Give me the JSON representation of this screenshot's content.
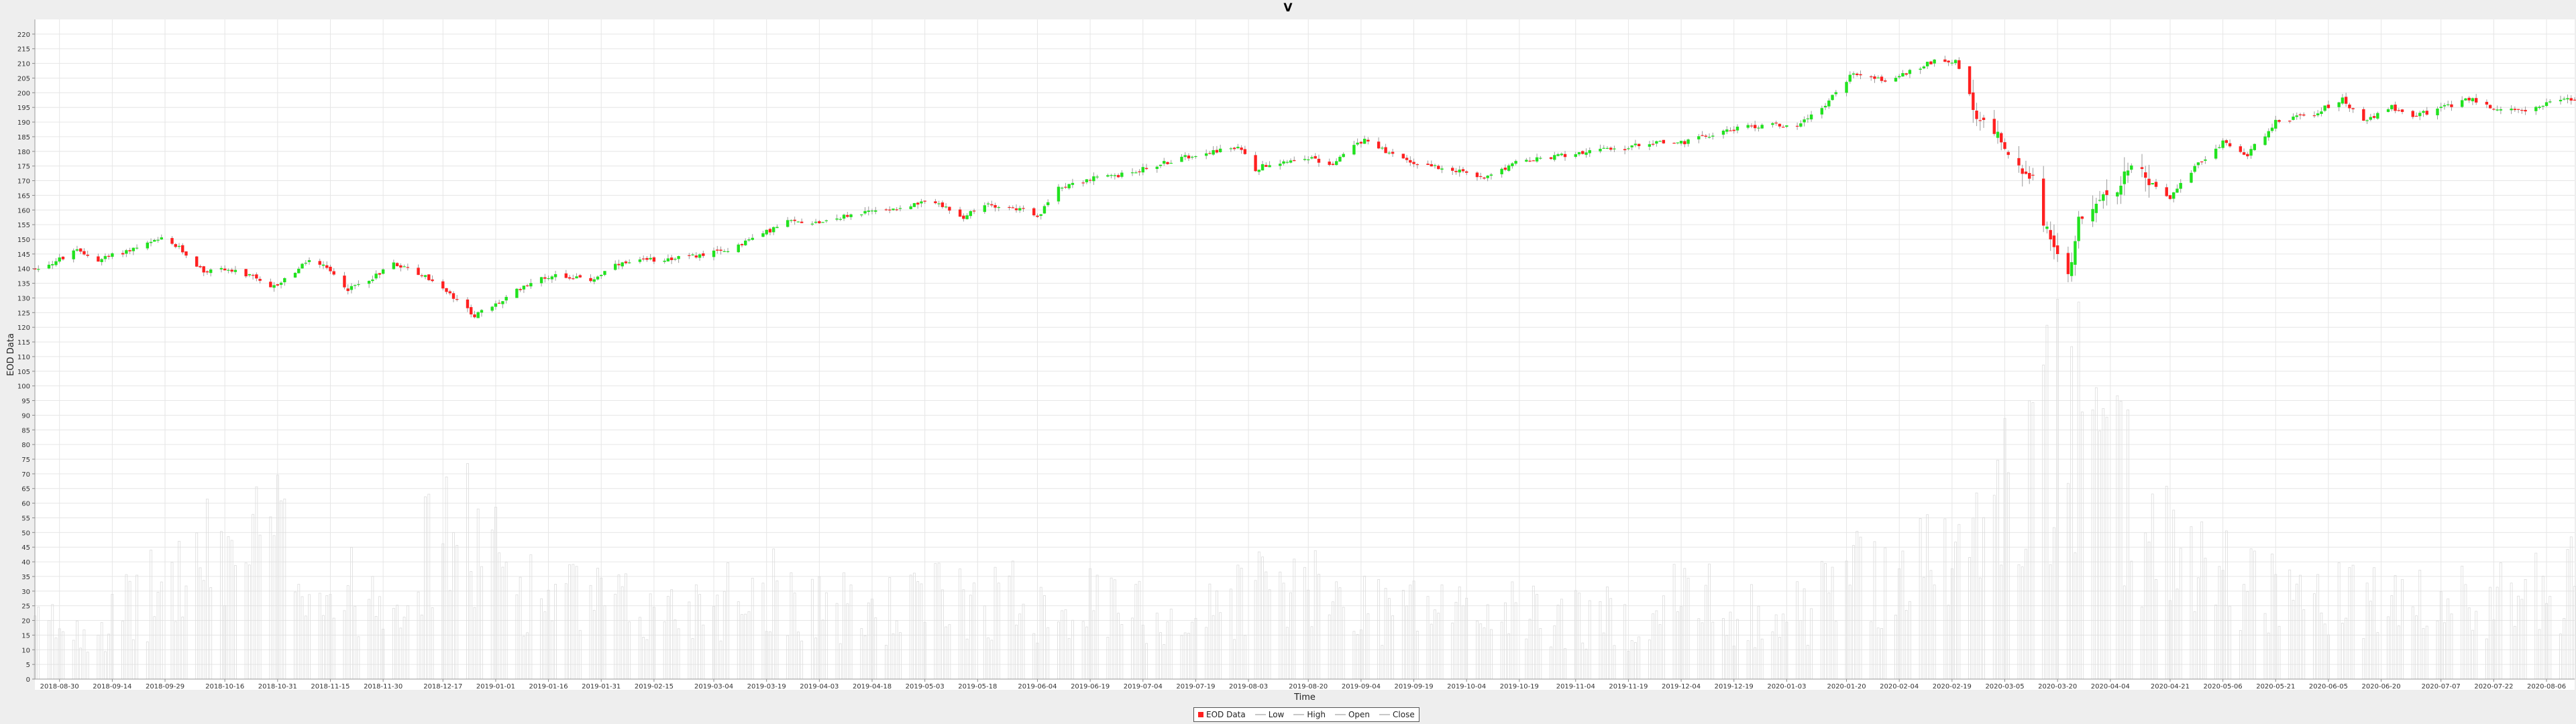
{
  "chart_data": {
    "type": "candlestick",
    "title": "V",
    "xlabel": "Time",
    "ylabel": "EOD Data",
    "ylim": [
      0,
      225
    ],
    "yticks": [
      0,
      5,
      10,
      15,
      20,
      25,
      30,
      35,
      40,
      45,
      50,
      55,
      60,
      65,
      70,
      75,
      80,
      85,
      90,
      95,
      100,
      105,
      110,
      115,
      120,
      125,
      130,
      135,
      140,
      145,
      150,
      155,
      160,
      165,
      170,
      175,
      180,
      185,
      190,
      195,
      200,
      205,
      210,
      215,
      220
    ],
    "xlim": [
      "2018-08-23",
      "2020-08-14"
    ],
    "xticks": [
      "2018-08-30",
      "2018-09-14",
      "2018-09-29",
      "2018-10-16",
      "2018-10-31",
      "2018-11-15",
      "2018-11-30",
      "2018-12-17",
      "2019-01-01",
      "2019-01-16",
      "2019-01-31",
      "2019-02-15",
      "2019-03-04",
      "2019-03-19",
      "2019-04-03",
      "2019-04-18",
      "2019-05-03",
      "2019-05-18",
      "2019-06-04",
      "2019-06-19",
      "2019-07-04",
      "2019-07-19",
      "2019-08-03",
      "2019-08-20",
      "2019-09-04",
      "2019-09-19",
      "2019-10-04",
      "2019-10-19",
      "2019-11-04",
      "2019-11-19",
      "2019-12-04",
      "2019-12-19",
      "2020-01-03",
      "2020-01-20",
      "2020-02-04",
      "2020-02-19",
      "2020-03-05",
      "2020-03-20",
      "2020-04-04",
      "2020-04-21",
      "2020-05-06",
      "2020-05-21",
      "2020-06-05",
      "2020-06-20",
      "2020-07-07",
      "2020-07-22",
      "2020-08-06"
    ],
    "grid": true,
    "legend_position": "bottom-center",
    "colors": {
      "up": "#21e21f",
      "down": "#ff2020",
      "wick": "#9a9a9a",
      "volume": "#dcdcdc",
      "grid": "#e6e6e6",
      "plot_bg": "#ffffff"
    },
    "legend": [
      {
        "label": "EOD Data",
        "swatch": "box",
        "color": "#ff2020"
      },
      {
        "label": "Low",
        "swatch": "line",
        "color": "#c8c8c8"
      },
      {
        "label": "High",
        "swatch": "line",
        "color": "#c8c8c8"
      },
      {
        "label": "Open",
        "swatch": "line",
        "color": "#c8c8c8"
      },
      {
        "label": "Close",
        "swatch": "line",
        "color": "#c8c8c8"
      }
    ],
    "price_anchors": [
      [
        "2018-08-23",
        140
      ],
      [
        "2018-08-28",
        142
      ],
      [
        "2018-09-04",
        146
      ],
      [
        "2018-09-10",
        143
      ],
      [
        "2018-09-18",
        146
      ],
      [
        "2018-09-28",
        150
      ],
      [
        "2018-10-03",
        147
      ],
      [
        "2018-10-10",
        139
      ],
      [
        "2018-10-16",
        140
      ],
      [
        "2018-10-24",
        137
      ],
      [
        "2018-10-29",
        133
      ],
      [
        "2018-11-05",
        139
      ],
      [
        "2018-11-09",
        143
      ],
      [
        "2018-11-14",
        140
      ],
      [
        "2018-11-20",
        133
      ],
      [
        "2018-11-27",
        137
      ],
      [
        "2018-12-03",
        142
      ],
      [
        "2018-12-07",
        140
      ],
      [
        "2018-12-14",
        136
      ],
      [
        "2018-12-21",
        129
      ],
      [
        "2018-12-26",
        124
      ],
      [
        "2019-01-03",
        129
      ],
      [
        "2019-01-10",
        135
      ],
      [
        "2019-01-18",
        138
      ],
      [
        "2019-01-28",
        136
      ],
      [
        "2019-02-04",
        141
      ],
      [
        "2019-02-14",
        143
      ],
      [
        "2019-02-25",
        144
      ],
      [
        "2019-03-07",
        146
      ],
      [
        "2019-03-18",
        152
      ],
      [
        "2019-03-25",
        156
      ],
      [
        "2019-04-03",
        156
      ],
      [
        "2019-04-15",
        159
      ],
      [
        "2019-04-26",
        161
      ],
      [
        "2019-05-06",
        163
      ],
      [
        "2019-05-13",
        157
      ],
      [
        "2019-05-21",
        162
      ],
      [
        "2019-05-31",
        160
      ],
      [
        "2019-06-04",
        157
      ],
      [
        "2019-06-10",
        168
      ],
      [
        "2019-06-21",
        171
      ],
      [
        "2019-06-28",
        172
      ],
      [
        "2019-07-10",
        176
      ],
      [
        "2019-07-22",
        180
      ],
      [
        "2019-08-01",
        181
      ],
      [
        "2019-08-05",
        174
      ],
      [
        "2019-08-09",
        176
      ],
      [
        "2019-08-20",
        178
      ],
      [
        "2019-08-26",
        175
      ],
      [
        "2019-09-03",
        183
      ],
      [
        "2019-09-06",
        184
      ],
      [
        "2019-09-12",
        179
      ],
      [
        "2019-09-19",
        176
      ],
      [
        "2019-09-30",
        174
      ],
      [
        "2019-10-08",
        171
      ],
      [
        "2019-10-18",
        176
      ],
      [
        "2019-10-28",
        178
      ],
      [
        "2019-11-07",
        180
      ],
      [
        "2019-11-18",
        181
      ],
      [
        "2019-11-25",
        183
      ],
      [
        "2019-12-05",
        183
      ],
      [
        "2019-12-16",
        187
      ],
      [
        "2019-12-27",
        189
      ],
      [
        "2020-01-06",
        189
      ],
      [
        "2020-01-14",
        196
      ],
      [
        "2020-01-22",
        207
      ],
      [
        "2020-01-31",
        204
      ],
      [
        "2020-02-07",
        207
      ],
      [
        "2020-02-14",
        211
      ],
      [
        "2020-02-20",
        211
      ],
      [
        "2020-02-26",
        190
      ],
      [
        "2020-03-03",
        186
      ],
      [
        "2020-03-09",
        175
      ],
      [
        "2020-03-13",
        170
      ],
      [
        "2020-03-18",
        148
      ],
      [
        "2020-03-23",
        137
      ],
      [
        "2020-03-26",
        159
      ],
      [
        "2020-04-01",
        163
      ],
      [
        "2020-04-06",
        165
      ],
      [
        "2020-04-09",
        175
      ],
      [
        "2020-04-14",
        172
      ],
      [
        "2020-04-21",
        164
      ],
      [
        "2020-04-29",
        176
      ],
      [
        "2020-05-06",
        183
      ],
      [
        "2020-05-13",
        179
      ],
      [
        "2020-05-21",
        190
      ],
      [
        "2020-06-01",
        193
      ],
      [
        "2020-06-09",
        198
      ],
      [
        "2020-06-15",
        190
      ],
      [
        "2020-06-23",
        195
      ],
      [
        "2020-06-29",
        192
      ],
      [
        "2020-07-08",
        195
      ],
      [
        "2020-07-15",
        198
      ],
      [
        "2020-07-23",
        194
      ],
      [
        "2020-07-30",
        194
      ],
      [
        "2020-08-06",
        196
      ],
      [
        "2020-08-13",
        198
      ]
    ],
    "volume_anchors": [
      [
        "2018-08-23",
        18
      ],
      [
        "2018-09-14",
        20
      ],
      [
        "2018-10-10",
        40
      ],
      [
        "2018-10-31",
        48
      ],
      [
        "2018-11-15",
        28
      ],
      [
        "2018-12-03",
        32
      ],
      [
        "2018-12-21",
        52
      ],
      [
        "2019-01-10",
        30
      ],
      [
        "2019-02-15",
        22
      ],
      [
        "2019-03-18",
        32
      ],
      [
        "2019-04-15",
        22
      ],
      [
        "2019-05-13",
        28
      ],
      [
        "2019-06-10",
        27
      ],
      [
        "2019-07-19",
        20
      ],
      [
        "2019-08-05",
        32
      ],
      [
        "2019-09-04",
        26
      ],
      [
        "2019-10-18",
        22
      ],
      [
        "2019-11-19",
        20
      ],
      [
        "2019-12-04",
        28
      ],
      [
        "2020-01-03",
        20
      ],
      [
        "2020-01-24",
        36
      ],
      [
        "2020-02-21",
        40
      ],
      [
        "2020-03-13",
        75
      ],
      [
        "2020-03-23",
        88
      ],
      [
        "2020-04-14",
        52
      ],
      [
        "2020-05-06",
        36
      ],
      [
        "2020-06-05",
        26
      ],
      [
        "2020-07-07",
        24
      ],
      [
        "2020-08-13",
        32
      ]
    ]
  }
}
